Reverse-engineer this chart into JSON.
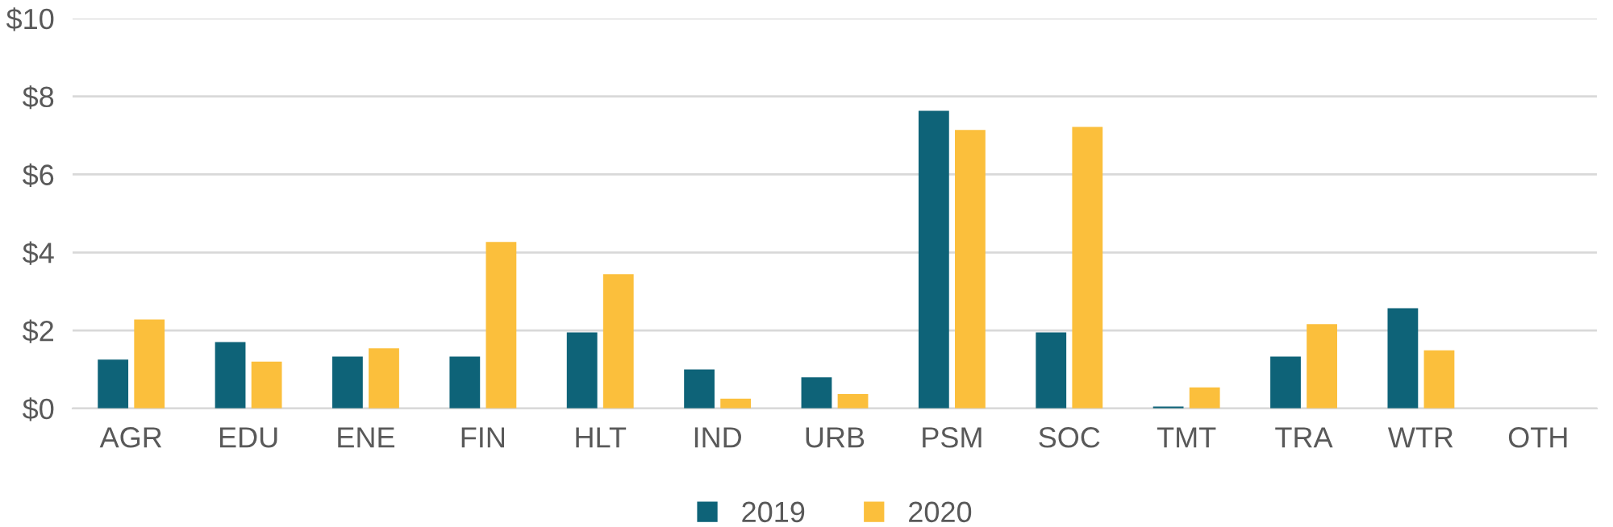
{
  "chart_data": {
    "type": "bar",
    "categories": [
      "AGR",
      "EDU",
      "ENE",
      "FIN",
      "HLT",
      "IND",
      "URB",
      "PSM",
      "SOC",
      "TMT",
      "TRA",
      "WTR",
      "OTH"
    ],
    "series": [
      {
        "name": "2019",
        "color": "#0e6378",
        "values": [
          1.25,
          1.7,
          1.33,
          1.33,
          1.95,
          1.0,
          0.8,
          7.63,
          1.95,
          0.05,
          1.33,
          2.57,
          0
        ]
      },
      {
        "name": "2020",
        "color": "#fbbf3c",
        "values": [
          2.28,
          1.2,
          1.54,
          4.27,
          3.44,
          0.25,
          0.37,
          7.14,
          7.22,
          0.54,
          2.16,
          1.49,
          0
        ]
      }
    ],
    "ylim": [
      0,
      10
    ],
    "yticks": [
      {
        "value": 0,
        "label": "$0"
      },
      {
        "value": 2,
        "label": "$2"
      },
      {
        "value": 4,
        "label": "$4"
      },
      {
        "value": 6,
        "label": "$6"
      },
      {
        "value": 8,
        "label": "$8"
      },
      {
        "value": 10,
        "label": "$10"
      }
    ],
    "grid": "y",
    "legend": "bottom"
  }
}
